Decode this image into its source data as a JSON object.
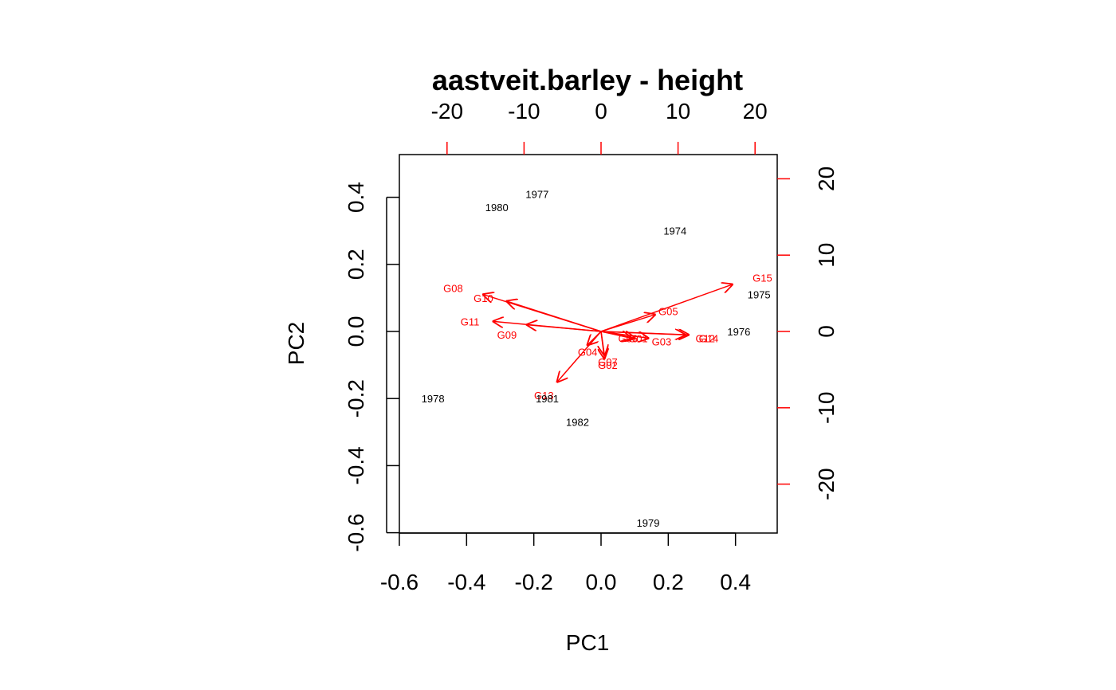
{
  "chart_data": {
    "type": "scatter",
    "subtype": "biplot",
    "title": "aastveit.barley - height",
    "xlabel": "PC1",
    "ylabel": "PC2",
    "xlim": [
      -0.6,
      0.5
    ],
    "ylim": [
      -0.6,
      0.5
    ],
    "x_ticks": [
      "-0.6",
      "-0.4",
      "-0.2",
      "0.0",
      "0.2",
      "0.4"
    ],
    "y_ticks": [
      "-0.6",
      "-0.4",
      "-0.2",
      "0.0",
      "0.2",
      "0.4"
    ],
    "top_axis_ticks": [
      "-20",
      "-10",
      "0",
      "10",
      "20"
    ],
    "right_axis_ticks": [
      "-20",
      "-10",
      "0",
      "10",
      "20"
    ],
    "secondary_axis_color": "#ff0000",
    "grid": false,
    "colors": {
      "observations": "#000000",
      "variables": "#ff0000"
    },
    "observations": [
      {
        "label": "1974",
        "x": 0.22,
        "y": 0.3
      },
      {
        "label": "1975",
        "x": 0.47,
        "y": 0.11
      },
      {
        "label": "1976",
        "x": 0.41,
        "y": 0.0
      },
      {
        "label": "1977",
        "x": -0.19,
        "y": 0.41
      },
      {
        "label": "1978",
        "x": -0.5,
        "y": -0.2
      },
      {
        "label": "1979",
        "x": 0.14,
        "y": -0.57
      },
      {
        "label": "1980",
        "x": -0.31,
        "y": 0.37
      },
      {
        "label": "1981",
        "x": -0.16,
        "y": -0.2
      },
      {
        "label": "1982",
        "x": -0.07,
        "y": -0.27
      }
    ],
    "variables": [
      {
        "label": "G01",
        "x": 0.1,
        "y": -0.02,
        "lx": 0.11,
        "ly": -0.02
      },
      {
        "label": "G02",
        "x": 0.01,
        "y": -0.08,
        "lx": 0.02,
        "ly": -0.1
      },
      {
        "label": "G03",
        "x": 0.14,
        "y": -0.02,
        "lx": 0.18,
        "ly": -0.03
      },
      {
        "label": "G04",
        "x": -0.04,
        "y": -0.04,
        "lx": -0.04,
        "ly": -0.06
      },
      {
        "label": "G05",
        "x": 0.16,
        "y": 0.05,
        "lx": 0.2,
        "ly": 0.06
      },
      {
        "label": "G06",
        "x": 0.09,
        "y": -0.02,
        "lx": 0.08,
        "ly": -0.02
      },
      {
        "label": "G07",
        "x": 0.01,
        "y": -0.07,
        "lx": 0.02,
        "ly": -0.09
      },
      {
        "label": "G08",
        "x": -0.35,
        "y": 0.11,
        "lx": -0.44,
        "ly": 0.13
      },
      {
        "label": "G09",
        "x": -0.22,
        "y": 0.02,
        "lx": -0.28,
        "ly": -0.01
      },
      {
        "label": "G10",
        "x": -0.28,
        "y": 0.09,
        "lx": -0.35,
        "ly": 0.1
      },
      {
        "label": "G11",
        "x": -0.32,
        "y": 0.03,
        "lx": -0.39,
        "ly": 0.03
      },
      {
        "label": "G12",
        "x": 0.25,
        "y": -0.01,
        "lx": 0.31,
        "ly": -0.02
      },
      {
        "label": "G13",
        "x": -0.13,
        "y": -0.15,
        "lx": -0.17,
        "ly": -0.19
      },
      {
        "label": "G14",
        "x": 0.26,
        "y": -0.01,
        "lx": 0.32,
        "ly": -0.02
      },
      {
        "label": "G15",
        "x": 0.39,
        "y": 0.14,
        "lx": 0.48,
        "ly": 0.16
      }
    ]
  }
}
